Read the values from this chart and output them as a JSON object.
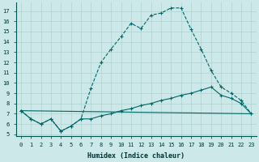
{
  "title": "",
  "xlabel": "Humidex (Indice chaleur)",
  "background_color": "#cce8e8",
  "grid_color": "#b0d0d0",
  "line_color": "#006666",
  "xlim": [
    -0.5,
    23.5
  ],
  "ylim": [
    4.8,
    17.8
  ],
  "xticks": [
    0,
    1,
    2,
    3,
    4,
    5,
    6,
    7,
    8,
    9,
    10,
    11,
    12,
    13,
    14,
    15,
    16,
    17,
    18,
    19,
    20,
    21,
    22,
    23
  ],
  "yticks": [
    5,
    6,
    7,
    8,
    9,
    10,
    11,
    12,
    13,
    14,
    15,
    16,
    17
  ],
  "series": [
    {
      "x": [
        0,
        1,
        2,
        3,
        4,
        5,
        6,
        7,
        8,
        9,
        10,
        11,
        12,
        13,
        14,
        15,
        16,
        17,
        18,
        19,
        20,
        21,
        22,
        23
      ],
      "y": [
        7.3,
        6.5,
        6.0,
        6.5,
        5.3,
        5.8,
        6.5,
        9.5,
        12.0,
        13.3,
        14.5,
        15.8,
        15.3,
        16.6,
        16.8,
        17.3,
        17.3,
        15.2,
        13.3,
        11.2,
        9.6,
        9.0,
        8.3,
        7.0
      ],
      "linestyle": "--",
      "marker": true
    },
    {
      "x": [
        0,
        1,
        2,
        3,
        4,
        5,
        6,
        7,
        8,
        9,
        10,
        11,
        12,
        13,
        14,
        15,
        16,
        17,
        18,
        19,
        20,
        21,
        22,
        23
      ],
      "y": [
        7.3,
        6.5,
        6.0,
        6.5,
        5.3,
        5.8,
        6.5,
        6.5,
        6.8,
        7.0,
        7.3,
        7.5,
        7.8,
        8.0,
        8.3,
        8.5,
        8.8,
        9.0,
        9.3,
        9.6,
        8.8,
        8.5,
        8.0,
        7.0
      ],
      "linestyle": "-",
      "marker": true
    },
    {
      "x": [
        0,
        23
      ],
      "y": [
        7.3,
        7.0
      ],
      "linestyle": "-",
      "marker": false
    }
  ]
}
